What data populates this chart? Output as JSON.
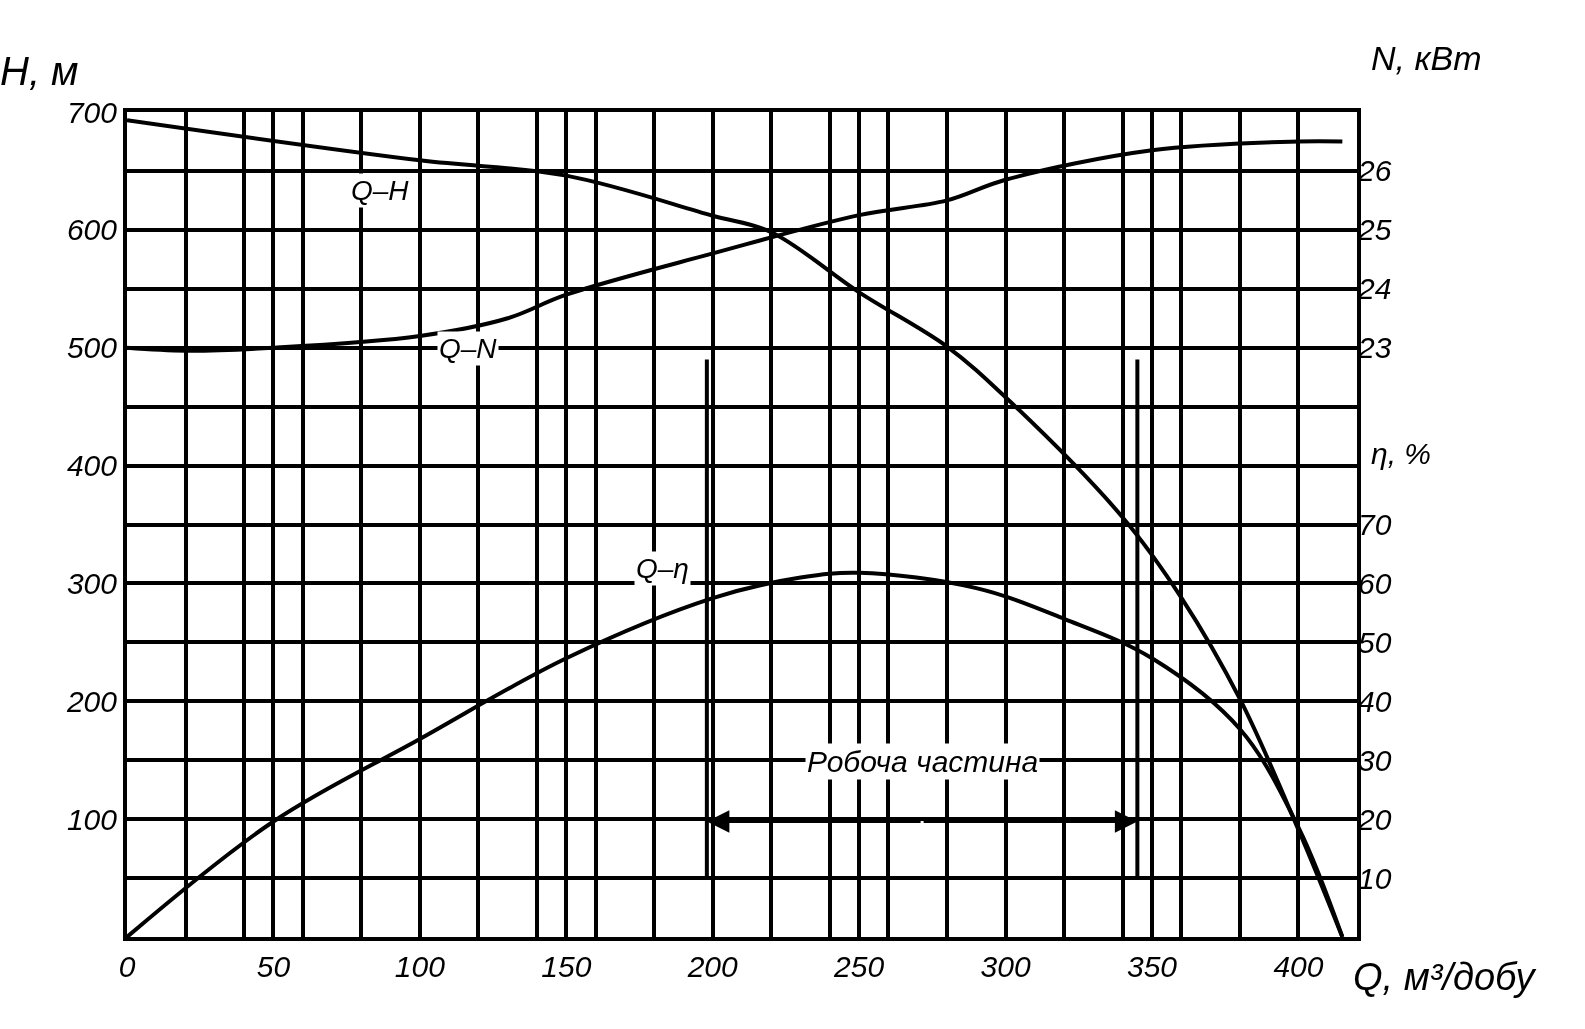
{
  "chart_data": {
    "type": "line",
    "xlabel": "Q, м³/добу",
    "ylabel": "H, м",
    "y2label": "N, кВт",
    "y3label": "η, %",
    "xlim": [
      0,
      420
    ],
    "xticks": [
      0,
      {
        "value": 20,
        "label": null
      },
      {
        "value": 40,
        "label": null
      },
      50,
      {
        "value": 60,
        "label": null
      },
      {
        "value": 80,
        "label": null
      },
      100,
      {
        "value": 120,
        "label": null
      },
      {
        "value": 140,
        "label": null
      },
      150,
      {
        "value": 160,
        "label": null
      },
      {
        "value": 180,
        "label": null
      },
      200,
      {
        "value": 220,
        "label": null
      },
      {
        "value": 240,
        "label": null
      },
      250,
      {
        "value": 260,
        "label": null
      },
      {
        "value": 280,
        "label": null
      },
      300,
      {
        "value": 320,
        "label": null
      },
      {
        "value": 340,
        "label": null
      },
      350,
      {
        "value": 360,
        "label": null
      },
      {
        "value": 380,
        "label": null
      },
      400,
      {
        "value": 420,
        "label": null
      }
    ],
    "ylim": [
      0,
      700
    ],
    "yticks": [
      {
        "value": 50,
        "label": null
      },
      100,
      {
        "value": 150,
        "label": null
      },
      200,
      {
        "value": 250,
        "label": null
      },
      300,
      {
        "value": 350,
        "label": null
      },
      400,
      {
        "value": 450,
        "label": null
      },
      500,
      {
        "value": 550,
        "label": null
      },
      600,
      {
        "value": 650,
        "label": null
      },
      700
    ],
    "y2lim": [
      13,
      27
    ],
    "y2ticks": [
      23,
      24,
      25,
      26
    ],
    "y3lim": [
      0,
      140
    ],
    "y3ticks": [
      10,
      20,
      30,
      40,
      50,
      60,
      70
    ],
    "grid": true,
    "legend": false,
    "series": [
      {
        "name": "Q–H",
        "color": "#000000",
        "x": [
          0,
          100,
          150,
          200,
          220,
          250,
          280,
          300,
          340,
          360,
          380,
          400,
          415
        ],
        "values": [
          693,
          659,
          646,
          612,
          598,
          547,
          501,
          458,
          356,
          288,
          202,
          91,
          0
        ]
      },
      {
        "name": "Q–N",
        "color": "#000000",
        "axis": "y2",
        "x": [
          0,
          20,
          50,
          100,
          130,
          150,
          200,
          250,
          280,
          300,
          350,
          400,
          415
        ],
        "values": [
          23.0,
          22.95,
          23.0,
          23.2,
          23.5,
          23.9,
          24.6,
          25.25,
          25.5,
          25.85,
          26.35,
          26.5,
          26.5
        ]
      },
      {
        "name": "Q–η",
        "color": "#000000",
        "axis": "y3",
        "x": [
          0,
          50,
          100,
          150,
          200,
          230,
          250,
          290,
          320,
          350,
          380,
          400,
          415
        ],
        "values": [
          0,
          19.6,
          33.6,
          47.3,
          57.5,
          61,
          61.8,
          59.2,
          54,
          47.3,
          35.3,
          18.6,
          0
        ]
      }
    ],
    "ref_lines": [
      {
        "axis": "x",
        "value": 198
      },
      {
        "axis": "x",
        "value": 345
      }
    ],
    "annotations": [
      "Робоча частина"
    ]
  }
}
